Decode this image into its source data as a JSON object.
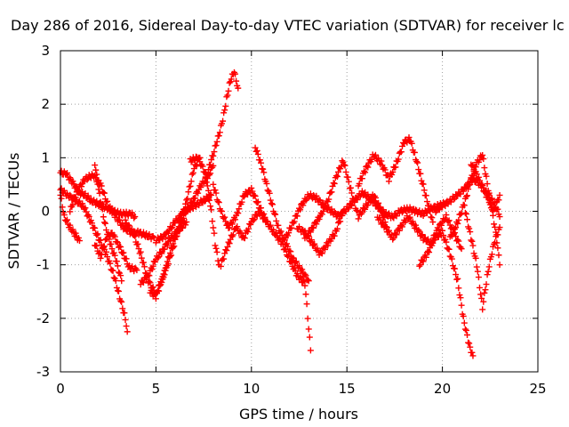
{
  "chart_data": {
    "type": "scatter",
    "title": "Day 286 of 2016, Sidereal Day-to-day VTEC variation (SDTVAR) for receiver lc",
    "xlabel": "GPS time / hours",
    "ylabel": "SDTVAR / TECUs",
    "xlim": [
      0,
      25
    ],
    "ylim": [
      -3,
      3
    ],
    "xticks": [
      0,
      5,
      10,
      15,
      20,
      25
    ],
    "yticks": [
      -3,
      -2,
      -1,
      0,
      1,
      2,
      3
    ],
    "grid": true,
    "marker": "+",
    "color": "#ff0000",
    "series": [
      {
        "name": "s1",
        "x": [
          0.0,
          0.4,
          0.8,
          1.2,
          1.6,
          2.0,
          2.4,
          2.8,
          3.1,
          3.4,
          3.5
        ],
        "y": [
          0.4,
          0.3,
          0.2,
          0.1,
          -0.2,
          -0.5,
          -0.8,
          -1.2,
          -1.6,
          -2.0,
          -2.25
        ]
      },
      {
        "name": "s2",
        "x": [
          0.0,
          0.2,
          0.5,
          0.8,
          1.0
        ],
        "y": [
          0.3,
          -0.1,
          -0.3,
          -0.45,
          -0.55
        ]
      },
      {
        "name": "s3",
        "x": [
          1.8,
          2.0,
          2.3,
          2.6,
          2.9,
          3.2
        ],
        "y": [
          0.9,
          0.4,
          -0.2,
          -0.6,
          -0.9,
          -1.3
        ]
      },
      {
        "name": "s4",
        "x": [
          0.0,
          0.3,
          0.6,
          1.0,
          1.3,
          1.6,
          1.9,
          2.2,
          2.5,
          2.8,
          3.1,
          3.4,
          3.7,
          3.9
        ],
        "y": [
          0.72,
          0.7,
          0.55,
          0.35,
          0.3,
          0.2,
          0.15,
          0.1,
          0.05,
          0.0,
          -0.05,
          -0.05,
          -0.05,
          -0.1
        ]
      },
      {
        "name": "s5",
        "x": [
          0.5,
          0.9,
          1.3,
          1.7,
          2.1,
          2.5,
          2.9,
          3.3,
          3.7,
          4.1,
          4.5,
          4.9
        ],
        "y": [
          0.0,
          0.4,
          0.6,
          0.68,
          0.5,
          0.1,
          -0.1,
          -0.3,
          -0.4,
          -0.4,
          -0.45,
          -0.5
        ]
      },
      {
        "name": "s6",
        "x": [
          1.8,
          2.1,
          2.4,
          2.7,
          3.0,
          3.3,
          3.6,
          4.0
        ],
        "y": [
          -0.6,
          -0.85,
          -0.5,
          -0.4,
          -0.6,
          -0.8,
          -1.05,
          -1.1
        ]
      },
      {
        "name": "s7",
        "x": [
          3.4,
          3.8,
          4.2,
          4.6,
          5.0,
          5.4,
          5.8,
          6.2,
          6.6,
          7.0,
          7.3
        ],
        "y": [
          -0.2,
          -0.4,
          -0.8,
          -1.3,
          -1.55,
          -1.2,
          -0.7,
          -0.3,
          0.2,
          0.8,
          1.0
        ]
      },
      {
        "name": "s8",
        "x": [
          4.2,
          4.6,
          5.0,
          5.4,
          5.8,
          6.2,
          6.6
        ],
        "y": [
          -1.35,
          -1.2,
          -0.9,
          -0.7,
          -0.5,
          -0.35,
          -0.2
        ]
      },
      {
        "name": "s9",
        "x": [
          4.7,
          5.0,
          5.4,
          5.8,
          6.2,
          6.6,
          7.0,
          7.4,
          7.8,
          8.0
        ],
        "y": [
          -1.5,
          -1.6,
          -1.2,
          -0.8,
          -0.3,
          0.0,
          0.25,
          0.5,
          0.7,
          0.85
        ]
      },
      {
        "name": "s10",
        "x": [
          5.0,
          5.5,
          6.0,
          6.5,
          7.0,
          7.5,
          7.9
        ],
        "y": [
          -0.55,
          -0.45,
          -0.2,
          0.0,
          0.1,
          0.2,
          0.3
        ]
      },
      {
        "name": "s11",
        "x": [
          6.8,
          7.2,
          7.6,
          7.9,
          8.1,
          8.3
        ],
        "y": [
          0.95,
          1.0,
          0.7,
          0.0,
          -0.6,
          -1.0
        ]
      },
      {
        "name": "s12",
        "x": [
          7.6,
          7.9,
          8.2,
          8.5,
          8.7,
          8.9,
          9.1,
          9.3
        ],
        "y": [
          0.6,
          0.95,
          1.3,
          1.7,
          2.1,
          2.45,
          2.6,
          2.3
        ]
      },
      {
        "name": "s13",
        "x": [
          8.0,
          8.4,
          8.8,
          9.2,
          9.6,
          10.0,
          10.4,
          10.8
        ],
        "y": [
          0.5,
          0.0,
          -0.3,
          -0.1,
          0.3,
          0.4,
          0.1,
          -0.2
        ]
      },
      {
        "name": "s14",
        "x": [
          8.4,
          8.8,
          9.2,
          9.6,
          10.0,
          10.4,
          10.8,
          11.2,
          11.6,
          12.0,
          12.4,
          12.8,
          13.1
        ],
        "y": [
          -1.0,
          -0.6,
          -0.3,
          -0.5,
          -0.2,
          0.0,
          -0.2,
          -0.4,
          -0.6,
          -0.9,
          -1.2,
          -1.35,
          -2.6
        ]
      },
      {
        "name": "s15",
        "x": [
          10.2,
          10.5,
          10.8,
          11.1,
          11.4,
          11.8,
          12.2,
          12.6,
          13.0
        ],
        "y": [
          1.2,
          0.9,
          0.5,
          0.1,
          -0.3,
          -0.6,
          -0.9,
          -1.1,
          -1.3
        ]
      },
      {
        "name": "s16",
        "x": [
          12.4,
          12.8,
          13.2,
          13.6,
          14.0,
          14.4,
          14.8
        ],
        "y": [
          -0.3,
          -0.4,
          -0.6,
          -0.8,
          -0.6,
          -0.4,
          0.0
        ]
      },
      {
        "name": "s17",
        "x": [
          12.8,
          13.2,
          13.6,
          14.0,
          14.4,
          14.8,
          15.2,
          15.6,
          16.0,
          16.4,
          16.8,
          17.1
        ],
        "y": [
          -0.5,
          -0.3,
          -0.1,
          0.2,
          0.6,
          0.95,
          0.4,
          -0.1,
          0.1,
          0.3,
          0.0,
          -0.3
        ]
      },
      {
        "name": "s18",
        "x": [
          11.8,
          12.2,
          12.6,
          13.0,
          13.4,
          13.8,
          14.2,
          14.6,
          15.0,
          15.4,
          15.8,
          16.2,
          16.6,
          17.0,
          17.4,
          17.8,
          18.2,
          18.6,
          19.0,
          19.4,
          19.8,
          20.2
        ],
        "y": [
          -0.5,
          -0.2,
          0.1,
          0.3,
          0.25,
          0.1,
          0.0,
          -0.1,
          0.05,
          0.2,
          0.35,
          0.25,
          0.1,
          -0.05,
          -0.1,
          0.0,
          0.05,
          0.0,
          -0.05,
          0.05,
          0.1,
          0.15
        ]
      },
      {
        "name": "s19",
        "x": [
          15.6,
          16.0,
          16.4,
          16.8,
          17.2,
          17.6,
          18.0,
          18.3,
          18.6,
          18.9,
          19.2,
          19.5
        ],
        "y": [
          0.5,
          0.8,
          1.05,
          0.9,
          0.6,
          0.9,
          1.3,
          1.35,
          1.0,
          0.6,
          0.2,
          -0.2
        ]
      },
      {
        "name": "s20",
        "x": [
          16.6,
          17.0,
          17.4,
          17.8,
          18.2,
          18.6,
          19.0,
          19.4,
          19.8,
          20.2,
          20.6,
          21.0
        ],
        "y": [
          -0.1,
          -0.3,
          -0.5,
          -0.3,
          -0.1,
          -0.3,
          -0.5,
          -0.6,
          -0.3,
          -0.1,
          -0.4,
          -0.7
        ]
      },
      {
        "name": "s21",
        "x": [
          18.8,
          19.2,
          19.6,
          20.0,
          20.4,
          20.8,
          21.1,
          21.4,
          21.6
        ],
        "y": [
          -1.0,
          -0.8,
          -0.5,
          -0.4,
          -0.8,
          -1.3,
          -2.0,
          -2.5,
          -2.7
        ]
      },
      {
        "name": "s22",
        "x": [
          19.6,
          20.0,
          20.4,
          20.8,
          21.2,
          21.6,
          22.0,
          22.4,
          22.8,
          23.0
        ],
        "y": [
          0.0,
          0.1,
          0.2,
          0.3,
          0.45,
          0.6,
          0.5,
          0.3,
          0.1,
          -0.1
        ]
      },
      {
        "name": "s23",
        "x": [
          20.4,
          20.8,
          21.2,
          21.5,
          21.8,
          22.1,
          22.4,
          22.8,
          23.0
        ],
        "y": [
          -0.5,
          -0.2,
          0.2,
          0.6,
          0.9,
          1.05,
          0.4,
          -0.4,
          -1.0
        ]
      },
      {
        "name": "s24",
        "x": [
          21.2,
          21.5,
          21.8,
          22.1,
          22.4,
          22.7,
          23.0
        ],
        "y": [
          0.0,
          -0.5,
          -1.0,
          -1.8,
          -1.1,
          -0.6,
          -0.3
        ]
      },
      {
        "name": "s25",
        "x": [
          21.5,
          21.9,
          22.3,
          22.7,
          23.0
        ],
        "y": [
          0.9,
          0.6,
          0.3,
          0.0,
          0.3
        ]
      }
    ]
  }
}
